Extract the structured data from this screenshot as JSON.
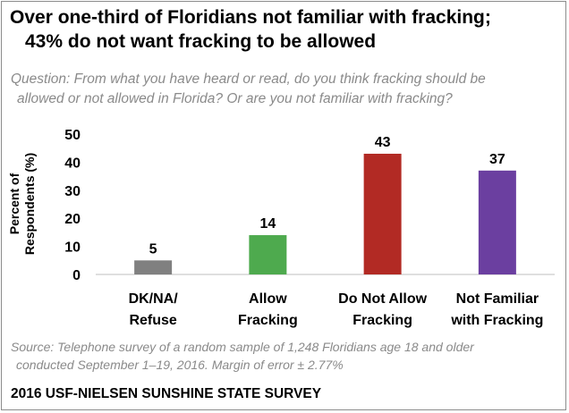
{
  "title": {
    "line1": "Over one-third of Floridians not familiar with fracking;",
    "line2": "43% do not want fracking to be allowed"
  },
  "question": {
    "line1": "Question: From what you have heard or read, do you think fracking should be",
    "line2": "allowed or not allowed in Florida? Or are you not familiar with fracking?"
  },
  "source": {
    "line1": "Source: Telephone survey of a random sample of 1,248 Floridians age 18 and older",
    "line2": "conducted September 1–19, 2016. Margin of error ± 2.77%"
  },
  "footer": "2016 USF-NIELSEN SUNSHINE STATE SURVEY",
  "chart_data": {
    "type": "bar",
    "categories": [
      [
        "DK/NA/",
        "Refuse"
      ],
      [
        "Allow",
        "Fracking"
      ],
      [
        "Do Not Allow",
        "Fracking"
      ],
      [
        "Not Familiar",
        "with Fracking"
      ]
    ],
    "values": [
      5,
      14,
      43,
      37
    ],
    "colors": [
      "#808080",
      "#4eaa4e",
      "#b22a24",
      "#6b3fa0"
    ],
    "ylabel": [
      "Percent of",
      "Respondents (%)"
    ],
    "ylim": [
      0,
      50
    ],
    "yticks": [
      0,
      10,
      20,
      30,
      40,
      50
    ],
    "grid": false,
    "data_labels": true
  }
}
